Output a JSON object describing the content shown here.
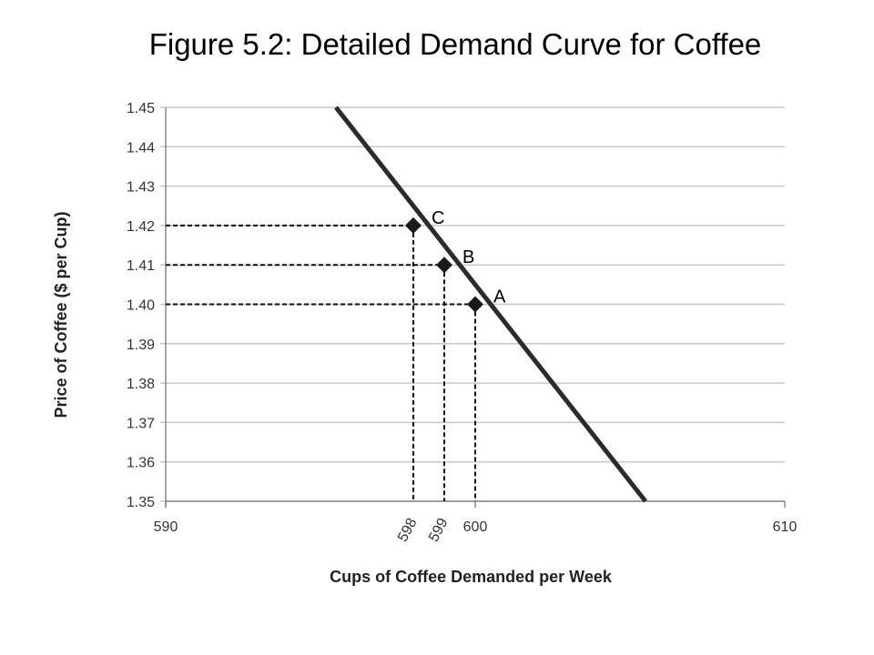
{
  "chart_data": {
    "type": "line",
    "title": "Figure 5.2: Detailed Demand Curve for Coffee",
    "xlabel": "Cups of Coffee Demanded per Week",
    "ylabel": "Price of Coffee ($ per Cup)",
    "xlim": [
      590,
      610
    ],
    "ylim": [
      1.35,
      1.45
    ],
    "x_ticks": [
      "590",
      "600",
      "610"
    ],
    "x_marked_ticks": [
      "598",
      "599"
    ],
    "y_ticks": [
      "1.35",
      "1.36",
      "1.37",
      "1.38",
      "1.39",
      "1.40",
      "1.41",
      "1.42",
      "1.43",
      "1.44",
      "1.45"
    ],
    "grid": "horizontal",
    "series": [
      {
        "values": [
          {
            "x": 595.5,
            "y": 1.45
          },
          {
            "x": 605.5,
            "y": 1.35
          }
        ],
        "color": "#2b2b2b"
      }
    ],
    "points": [
      {
        "label": "C",
        "x": 598,
        "y": 1.42
      },
      {
        "label": "B",
        "x": 599,
        "y": 1.41
      },
      {
        "label": "A",
        "x": 600,
        "y": 1.4
      }
    ],
    "colors": {
      "line": "#2b2b2b",
      "grid": "#c8c8c8",
      "axis": "#888888"
    }
  }
}
